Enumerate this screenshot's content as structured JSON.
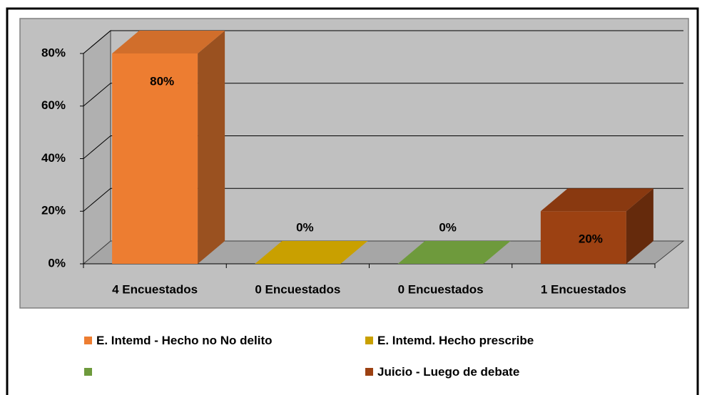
{
  "chart_data": {
    "type": "bar3d",
    "categories": [
      "4 Encuestados",
      "0 Encuestados",
      "0 Encuestados",
      "1 Encuestados"
    ],
    "values": [
      80,
      0,
      0,
      20
    ],
    "value_labels": [
      "80%",
      "0%",
      "0%",
      "20%"
    ],
    "colors": [
      "#ed7d31",
      "#c9a000",
      "#6e9a3c",
      "#9c4112"
    ],
    "legend_labels": [
      "E. Intemd - Hecho no No delito",
      "E. Intemd. Hecho prescribe",
      null,
      "Juicio - Luego de debate"
    ],
    "ylim": [
      0,
      80
    ],
    "yticks": [
      {
        "value": 0,
        "label": "0%"
      },
      {
        "value": 20,
        "label": "20%"
      },
      {
        "value": 40,
        "label": "40%"
      },
      {
        "value": 60,
        "label": "60%"
      },
      {
        "value": 80,
        "label": "80%"
      }
    ],
    "grid": true
  }
}
